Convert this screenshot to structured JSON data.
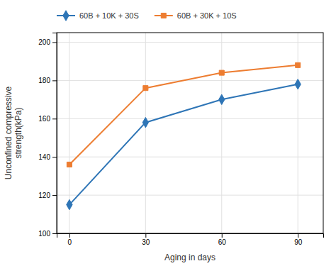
{
  "chart_data": {
    "type": "line",
    "x": [
      0,
      30,
      60,
      90
    ],
    "series": [
      {
        "name": "60B + 10K + 30S",
        "color": "#2e75b6",
        "marker": "diamond",
        "values": [
          115,
          158,
          170,
          178
        ]
      },
      {
        "name": "60B + 30K + 10S",
        "color": "#ed7d31",
        "marker": "square",
        "values": [
          136,
          176,
          184,
          188
        ]
      }
    ],
    "xlabel": "Aging in days",
    "ylabel": "Unconfined compressive\nstrength(kPa)",
    "xlim": [
      -5,
      100
    ],
    "ylim": [
      100,
      205
    ],
    "xticks": [
      0,
      30,
      60,
      90
    ],
    "yticks": [
      100,
      120,
      140,
      160,
      180,
      200
    ],
    "grid": true,
    "legend": "top"
  }
}
